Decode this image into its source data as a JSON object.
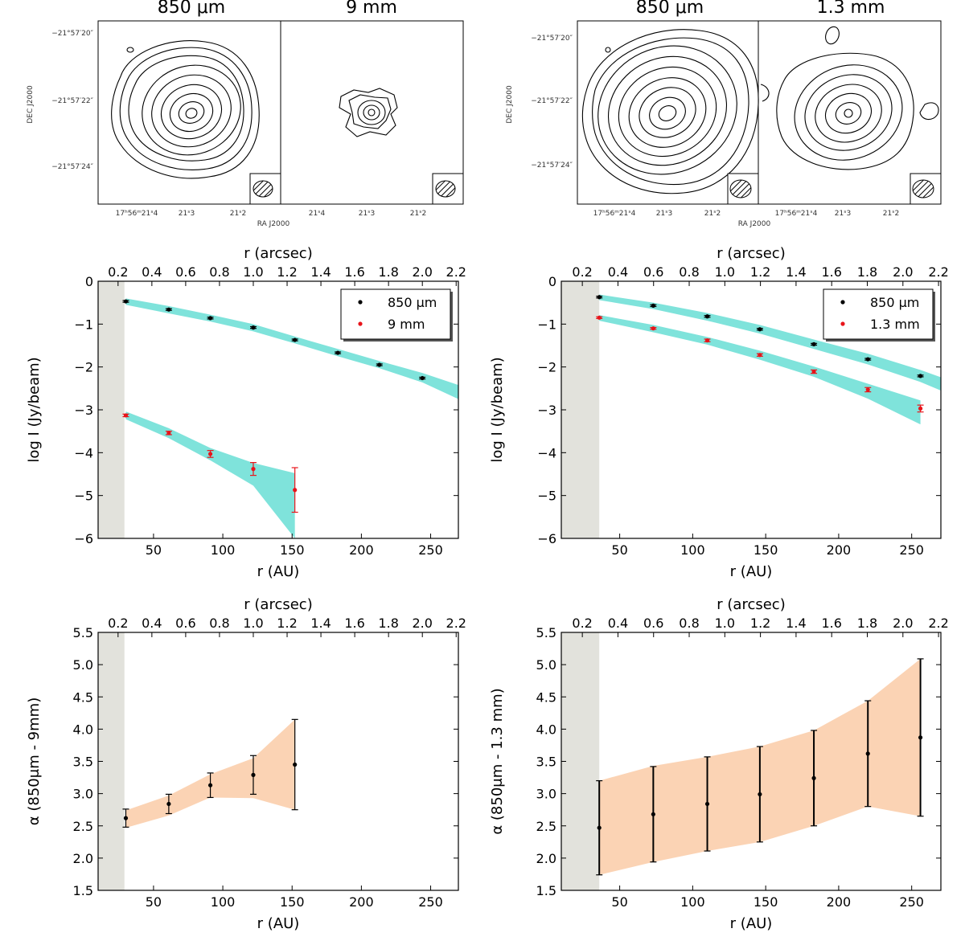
{
  "colors": {
    "cyan_band": "#7fe3db",
    "orange_band": "#fbd3b4",
    "shade": "#e2e2dc",
    "black": "#000000",
    "red": "#e8141a"
  },
  "contour_panels": [
    {
      "name": "left-maps",
      "map_titles": [
        "850 μm",
        "9 mm"
      ],
      "ytick_labels": [
        "−21°57′20″",
        "−21°57′22″",
        "−21°57′24″"
      ],
      "ylabel": "DEC J2000",
      "xtick_labels_left": [
        "17ʰ56ᵐ21ˢ4",
        "21ˢ3",
        "21ˢ2"
      ],
      "xlabel": "RA J2000",
      "xtick_labels_right": [
        "21ˢ4",
        "21ˢ3",
        "21ˢ2"
      ]
    },
    {
      "name": "right-maps",
      "map_titles": [
        "850 μm",
        "1.3 mm"
      ],
      "ytick_labels": [
        "−21°57′20″",
        "−21°57′22″",
        "−21°57′24″"
      ],
      "ylabel": "DEC J2000",
      "xtick_labels_left": [
        "17ʰ56ᵐ21ˢ4",
        "21ˢ3",
        "21ˢ2"
      ],
      "xlabel": "RA J2000",
      "xtick_labels_right": [
        "17ʰ56ᵐ21ˢ4",
        "21ˢ3",
        "21ˢ2"
      ]
    }
  ],
  "chart_data": [
    {
      "id": "intensity-9mm",
      "type": "line",
      "xlabel": "r (AU)",
      "x2label": "r (arcsec)",
      "ylabel": "log I (Jy/beam)",
      "xlim": [
        10,
        270
      ],
      "ylim": [
        -6,
        0
      ],
      "xticks": [
        50,
        100,
        150,
        200,
        250
      ],
      "x2ticks": [
        0.2,
        0.4,
        0.6,
        0.8,
        1.0,
        1.2,
        1.4,
        1.6,
        1.8,
        2.0,
        2.2
      ],
      "x2ticklabels": [
        "0.2",
        "0.4",
        "0.6",
        "0.8",
        "1.0",
        "1.2",
        "1.4",
        "1.6",
        "1.8",
        "2.0",
        "2.2"
      ],
      "yticks": [
        0,
        -1,
        -2,
        -3,
        -4,
        -5,
        -6
      ],
      "yticklabels": [
        "0",
        "−1",
        "−2",
        "−3",
        "−4",
        "−5",
        "−6"
      ],
      "au_per_arcsec": 122,
      "shade_x": [
        10,
        29
      ],
      "series": [
        {
          "name": "850 μm",
          "color": "black",
          "x": [
            30,
            61,
            91,
            122,
            152,
            183,
            213,
            244
          ],
          "y": [
            -0.47,
            -0.66,
            -0.86,
            -1.08,
            -1.37,
            -1.67,
            -1.95,
            -2.26
          ],
          "err": [
            0.02,
            0.02,
            0.02,
            0.02,
            0.02,
            0.02,
            0.02,
            0.02
          ],
          "band_x": [
            30,
            61,
            91,
            122,
            152,
            183,
            213,
            244,
            270
          ],
          "band_low": [
            -0.55,
            -0.75,
            -0.94,
            -1.17,
            -1.45,
            -1.75,
            -2.03,
            -2.36,
            -2.75
          ],
          "band_high": [
            -0.4,
            -0.58,
            -0.78,
            -1.0,
            -1.29,
            -1.58,
            -1.86,
            -2.14,
            -2.42
          ]
        },
        {
          "name": "9 mm",
          "color": "red",
          "x": [
            30,
            61,
            91,
            122,
            152
          ],
          "y": [
            -3.13,
            -3.54,
            -4.03,
            -4.38,
            -4.87
          ],
          "err": [
            0.03,
            0.04,
            0.08,
            0.15,
            0.52
          ],
          "band_x": [
            30,
            61,
            91,
            122,
            152
          ],
          "band_low": [
            -3.22,
            -3.66,
            -4.18,
            -4.77,
            -6.0
          ],
          "band_high": [
            -3.04,
            -3.43,
            -3.89,
            -4.24,
            -4.48
          ]
        }
      ],
      "legend": [
        "850 μm",
        "9 mm"
      ]
    },
    {
      "id": "intensity-1p3mm",
      "type": "line",
      "xlabel": "r (AU)",
      "x2label": "r (arcsec)",
      "ylabel": "log I (Jy/beam)",
      "xlim": [
        10,
        270
      ],
      "ylim": [
        -6,
        0
      ],
      "xticks": [
        50,
        100,
        150,
        200,
        250
      ],
      "x2ticks": [
        0.2,
        0.4,
        0.6,
        0.8,
        1.0,
        1.2,
        1.4,
        1.6,
        1.8,
        2.0,
        2.2
      ],
      "x2ticklabels": [
        "0.2",
        "0.4",
        "0.6",
        "0.8",
        "1.0",
        "1.2",
        "1.4",
        "1.6",
        "1.8",
        "2.0",
        "2.2"
      ],
      "yticks": [
        0,
        -1,
        -2,
        -3,
        -4,
        -5,
        -6
      ],
      "yticklabels": [
        "0",
        "−1",
        "−2",
        "−3",
        "−4",
        "−5",
        "−6"
      ],
      "au_per_arcsec": 122,
      "shade_x": [
        10,
        36
      ],
      "series": [
        {
          "name": "850 μm",
          "color": "black",
          "x": [
            36,
            73,
            110,
            146,
            183,
            220,
            256
          ],
          "y": [
            -0.37,
            -0.57,
            -0.82,
            -1.12,
            -1.47,
            -1.82,
            -2.21
          ],
          "err": [
            0.02,
            0.02,
            0.02,
            0.02,
            0.02,
            0.02,
            0.02
          ],
          "band_x": [
            36,
            73,
            110,
            146,
            183,
            220,
            256,
            270
          ],
          "band_low": [
            -0.44,
            -0.65,
            -0.92,
            -1.22,
            -1.58,
            -1.94,
            -2.35,
            -2.55
          ],
          "band_high": [
            -0.31,
            -0.5,
            -0.74,
            -1.02,
            -1.36,
            -1.69,
            -2.07,
            -2.24
          ]
        },
        {
          "name": "1.3 mm",
          "color": "red",
          "x": [
            36,
            73,
            110,
            146,
            183,
            220,
            256
          ],
          "y": [
            -0.85,
            -1.1,
            -1.38,
            -1.72,
            -2.11,
            -2.53,
            -2.97
          ],
          "err": [
            0.02,
            0.02,
            0.03,
            0.03,
            0.04,
            0.05,
            0.08
          ],
          "band_x": [
            36,
            73,
            110,
            146,
            183,
            220,
            256
          ],
          "band_low": [
            -0.92,
            -1.19,
            -1.48,
            -1.83,
            -2.23,
            -2.74,
            -3.34
          ],
          "band_high": [
            -0.79,
            -1.02,
            -1.3,
            -1.62,
            -1.99,
            -2.39,
            -2.78
          ]
        }
      ],
      "legend": [
        "850 μm",
        "1.3 mm"
      ]
    },
    {
      "id": "alpha-9mm",
      "type": "line",
      "xlabel": "r (AU)",
      "x2label": "r (arcsec)",
      "ylabel": "α (850μm - 9mm)",
      "xlim": [
        10,
        270
      ],
      "ylim": [
        1.5,
        5.5
      ],
      "xticks": [
        50,
        100,
        150,
        200,
        250
      ],
      "x2ticks": [
        0.2,
        0.4,
        0.6,
        0.8,
        1.0,
        1.2,
        1.4,
        1.6,
        1.8,
        2.0,
        2.2
      ],
      "x2ticklabels": [
        "0.2",
        "0.4",
        "0.6",
        "0.8",
        "1.0",
        "1.2",
        "1.4",
        "1.6",
        "1.8",
        "2.0",
        "2.2"
      ],
      "yticks": [
        1.5,
        2.0,
        2.5,
        3.0,
        3.5,
        4.0,
        4.5,
        5.0,
        5.5
      ],
      "yticklabels": [
        "1.5",
        "2.0",
        "2.5",
        "3.0",
        "3.5",
        "4.0",
        "4.5",
        "5.0",
        "5.5"
      ],
      "au_per_arcsec": 122,
      "shade_x": [
        10,
        29
      ],
      "series": [
        {
          "name": "alpha",
          "color": "black",
          "x": [
            30,
            61,
            91,
            122,
            152
          ],
          "y": [
            2.62,
            2.84,
            3.13,
            3.29,
            3.45
          ],
          "err_low": [
            0.14,
            0.15,
            0.19,
            0.3,
            0.7
          ],
          "err_high": [
            0.14,
            0.15,
            0.19,
            0.3,
            0.7
          ],
          "band_x": [
            30,
            61,
            91,
            122,
            152
          ],
          "band_low": [
            2.47,
            2.66,
            2.94,
            2.93,
            2.75
          ],
          "band_high": [
            2.74,
            2.97,
            3.3,
            3.55,
            4.15
          ]
        }
      ]
    },
    {
      "id": "alpha-1p3mm",
      "type": "line",
      "xlabel": "r (AU)",
      "x2label": "r (arcsec)",
      "ylabel": "α (850μm - 1.3 mm)",
      "xlim": [
        10,
        270
      ],
      "ylim": [
        1.5,
        5.5
      ],
      "xticks": [
        50,
        100,
        150,
        200,
        250
      ],
      "x2ticks": [
        0.2,
        0.4,
        0.6,
        0.8,
        1.0,
        1.2,
        1.4,
        1.6,
        1.8,
        2.0,
        2.2
      ],
      "x2ticklabels": [
        "0.2",
        "0.4",
        "0.6",
        "0.8",
        "1.0",
        "1.2",
        "1.4",
        "1.6",
        "1.8",
        "2.0",
        "2.2"
      ],
      "yticks": [
        1.5,
        2.0,
        2.5,
        3.0,
        3.5,
        4.0,
        4.5,
        5.0,
        5.5
      ],
      "yticklabels": [
        "1.5",
        "2.0",
        "2.5",
        "3.0",
        "3.5",
        "4.0",
        "4.5",
        "5.0",
        "5.5"
      ],
      "au_per_arcsec": 122,
      "shade_x": [
        10,
        36
      ],
      "series": [
        {
          "name": "alpha",
          "color": "black",
          "x": [
            36,
            73,
            110,
            146,
            183,
            220,
            256
          ],
          "y": [
            2.47,
            2.68,
            2.84,
            2.99,
            3.24,
            3.62,
            3.87
          ],
          "err_low": [
            0.73,
            0.74,
            0.73,
            0.74,
            0.74,
            0.82,
            1.22
          ],
          "err_high": [
            0.73,
            0.74,
            0.73,
            0.74,
            0.74,
            0.82,
            1.22
          ],
          "band_x": [
            36,
            73,
            110,
            146,
            183,
            220,
            256
          ],
          "band_low": [
            1.74,
            1.94,
            2.11,
            2.25,
            2.5,
            2.8,
            2.65
          ],
          "band_high": [
            3.2,
            3.43,
            3.57,
            3.73,
            3.98,
            4.44,
            5.09
          ]
        }
      ]
    }
  ]
}
